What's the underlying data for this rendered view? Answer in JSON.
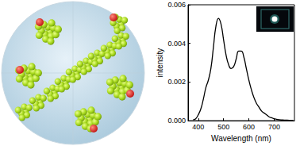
{
  "chart_data": {
    "type": "line",
    "x_label": "Wavelength (nm)",
    "y_label": "intensity",
    "x": [
      380,
      390,
      400,
      410,
      420,
      430,
      440,
      450,
      460,
      470,
      480,
      490,
      500,
      510,
      520,
      530,
      540,
      550,
      560,
      570,
      580,
      590,
      600,
      610,
      620,
      630,
      640,
      650,
      660,
      670,
      680,
      690,
      700,
      720,
      740,
      760,
      775
    ],
    "values": [
      5e-05,
      0.0001,
      0.0003,
      0.0006,
      0.0011,
      0.0017,
      0.0021,
      0.0027,
      0.0038,
      0.0049,
      0.0053,
      0.005,
      0.0042,
      0.0034,
      0.0029,
      0.0027,
      0.0028,
      0.0032,
      0.0036,
      0.0036,
      0.0033,
      0.0027,
      0.0021,
      0.0016,
      0.0012,
      0.0009,
      0.0007,
      0.0005,
      0.0004,
      0.0003,
      0.0002,
      0.00015,
      0.0001,
      5e-05,
      3e-05,
      2e-05,
      1e-05
    ],
    "color": "#000000",
    "xlim": [
      360,
      780
    ],
    "xticks": [
      400,
      500,
      600,
      700
    ],
    "ylim": [
      0,
      0.006
    ],
    "yticks": [
      {
        "value": 0,
        "label": "0.000"
      },
      {
        "value": 0.002,
        "label": "0.002"
      },
      {
        "value": 0.004,
        "label": "0.004"
      },
      {
        "value": 0.006,
        "label": "0.006"
      }
    ],
    "grid": false
  }
}
